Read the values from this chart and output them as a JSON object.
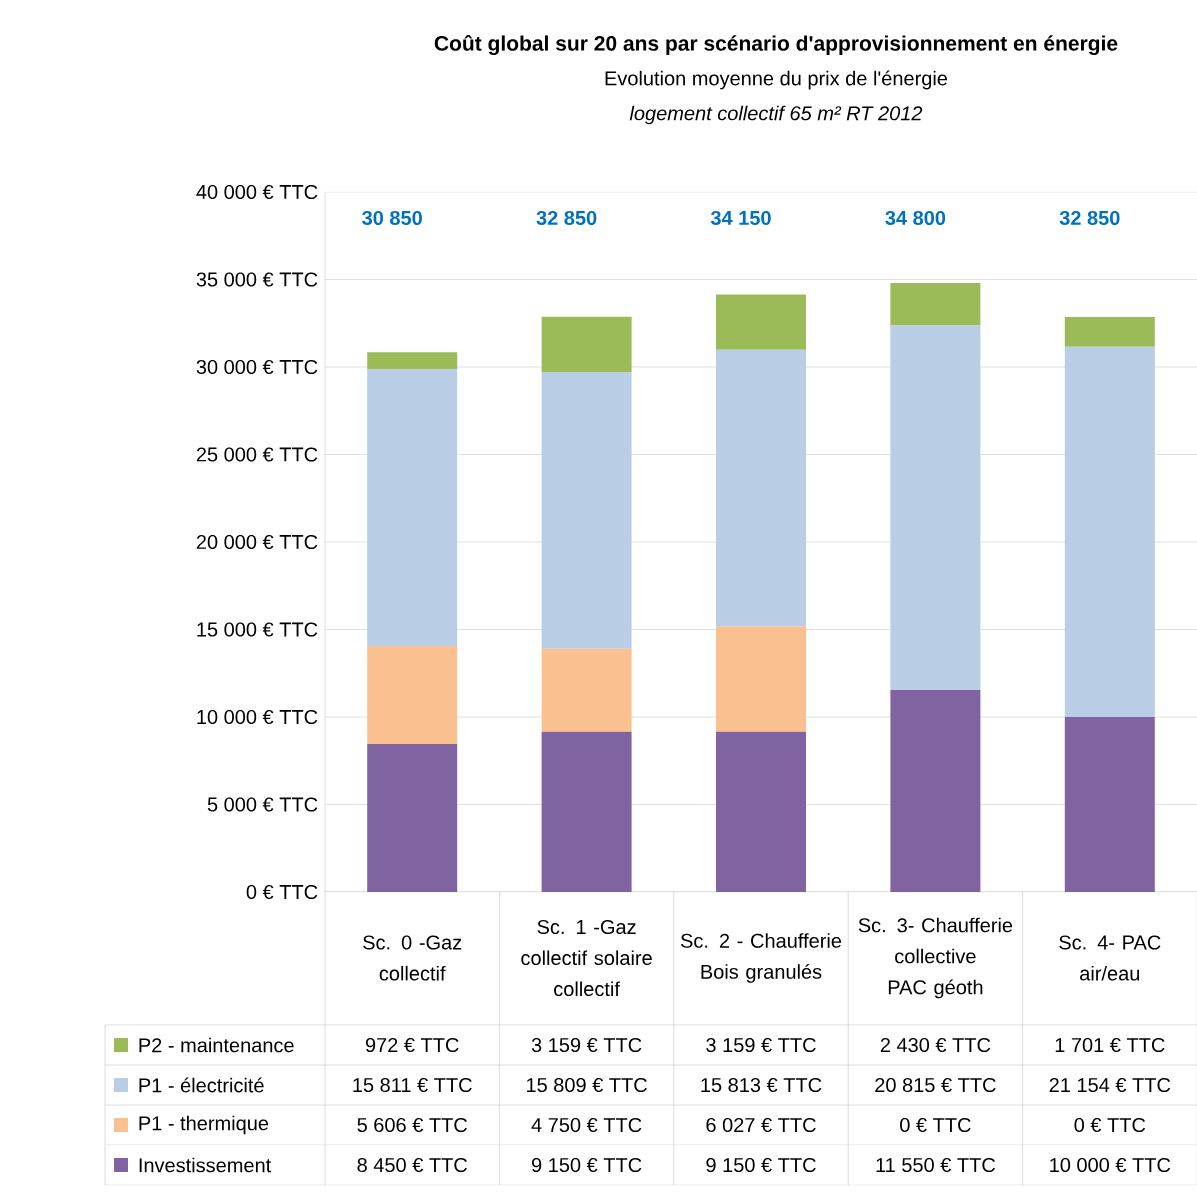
{
  "chart_data": {
    "type": "bar",
    "stacked": true,
    "title": "Coût global sur 20 ans par scénario d'approvisionnement en énergie",
    "subtitle": "Evolution moyenne du prix de l'énergie",
    "annotations": [
      "logement collectif 65 m² RT 2012",
      "30 850",
      "32 850",
      "34 150",
      "34 800",
      "32 850"
    ],
    "categories": [
      "Sc. 0 -Gaz collectif",
      "Sc. 1 -Gaz collectif solaire collectif",
      "Sc. 2 - Chaufferie Bois granulés",
      "Sc. 3- Chaufferie collective PAC géoth",
      "Sc. 4- PAC air/eau"
    ],
    "series": [
      {
        "name": "Investissement",
        "color": "#8064a2",
        "values": [
          8450,
          9150,
          9150,
          11550,
          10000
        ],
        "value_labels": [
          "8 450 € TTC",
          "9 150 € TTC",
          "9 150 € TTC",
          "11 550 € TTC",
          "10 000 € TTC"
        ]
      },
      {
        "name": "P1 - thermique",
        "color": "#fac090",
        "values": [
          5606,
          4750,
          6027,
          0,
          0
        ],
        "value_labels": [
          "5 606 € TTC",
          "4 750 € TTC",
          "6 027 € TTC",
          "0 € TTC",
          "0 € TTC"
        ]
      },
      {
        "name": "P1 - électricité",
        "color": "#b9cde5",
        "values": [
          15811,
          15809,
          15813,
          20815,
          21154
        ],
        "value_labels": [
          "15 811 € TTC",
          "15 809 € TTC",
          "15 813 € TTC",
          "20 815 € TTC",
          "21 154 € TTC"
        ]
      },
      {
        "name": "P2 - maintenance",
        "color": "#9bbb59",
        "values": [
          972,
          3159,
          3159,
          2430,
          1701
        ],
        "value_labels": [
          "972 € TTC",
          "3 159 € TTC",
          "3 159 € TTC",
          "2 430 € TTC",
          "1 701 € TTC"
        ]
      }
    ],
    "ylim": [
      0,
      40000
    ],
    "yticks": [
      {
        "value": 0,
        "label": "0 € TTC"
      },
      {
        "value": 5000,
        "label": "5 000 € TTC"
      },
      {
        "value": 10000,
        "label": "10 000 € TTC"
      },
      {
        "value": 15000,
        "label": "15 000 € TTC"
      },
      {
        "value": 20000,
        "label": "20 000 € TTC"
      },
      {
        "value": 25000,
        "label": "25 000 € TTC"
      },
      {
        "value": 30000,
        "label": "30 000 € TTC"
      },
      {
        "value": 35000,
        "label": "35 000 € TTC"
      },
      {
        "value": 40000,
        "label": "40 000 € TTC"
      }
    ],
    "grid": "y",
    "legend": "bottom"
  }
}
